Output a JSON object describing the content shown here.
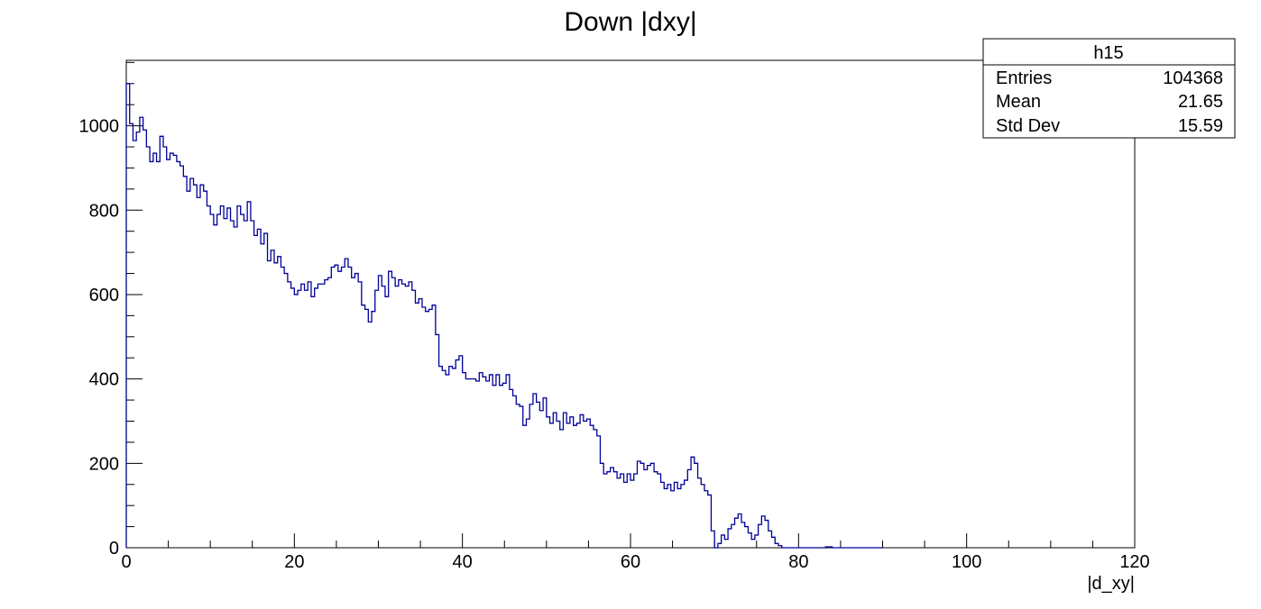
{
  "chart_data": {
    "type": "histogram",
    "title": "Down |dxy|",
    "xlabel": "|d_xy|",
    "ylabel": "",
    "xlim": [
      0,
      120
    ],
    "ylim": [
      0,
      1155
    ],
    "line_color": "#000099",
    "x_ticks": [
      "0",
      "20",
      "40",
      "60",
      "80",
      "100",
      "120"
    ],
    "y_ticks": [
      "0",
      "200",
      "400",
      "600",
      "800",
      "1000"
    ],
    "bins": {
      "bin_width": 0.4,
      "x_start": 0,
      "values": [
        1100,
        1005,
        965,
        985,
        1020,
        990,
        950,
        915,
        935,
        915,
        975,
        950,
        920,
        935,
        930,
        915,
        905,
        880,
        845,
        875,
        860,
        830,
        860,
        845,
        810,
        790,
        765,
        790,
        810,
        780,
        805,
        775,
        760,
        810,
        790,
        775,
        820,
        775,
        740,
        755,
        720,
        745,
        680,
        705,
        675,
        690,
        665,
        650,
        630,
        615,
        600,
        610,
        625,
        610,
        630,
        595,
        615,
        625,
        625,
        635,
        640,
        665,
        670,
        655,
        665,
        685,
        665,
        640,
        650,
        630,
        575,
        565,
        535,
        560,
        610,
        645,
        620,
        595,
        655,
        640,
        620,
        635,
        625,
        620,
        630,
        610,
        580,
        590,
        570,
        560,
        565,
        575,
        505,
        430,
        420,
        410,
        430,
        425,
        445,
        455,
        415,
        400,
        400,
        400,
        395,
        415,
        405,
        395,
        410,
        385,
        410,
        385,
        390,
        410,
        375,
        360,
        340,
        335,
        290,
        305,
        340,
        365,
        345,
        325,
        355,
        310,
        295,
        320,
        300,
        280,
        320,
        295,
        310,
        290,
        295,
        315,
        300,
        305,
        290,
        280,
        265,
        200,
        175,
        180,
        190,
        180,
        165,
        175,
        155,
        175,
        160,
        175,
        205,
        200,
        185,
        195,
        200,
        180,
        175,
        155,
        140,
        150,
        135,
        155,
        140,
        150,
        160,
        185,
        215,
        200,
        165,
        150,
        135,
        125,
        40,
        0,
        10,
        30,
        20,
        45,
        55,
        70,
        80,
        60,
        50,
        35,
        20,
        30,
        55,
        75,
        65,
        40,
        25,
        10,
        5,
        0,
        0,
        0,
        0,
        0,
        0,
        0,
        0,
        0,
        0,
        0,
        0,
        0,
        2,
        2,
        0,
        0,
        0,
        0,
        0,
        0,
        0,
        0,
        0,
        0,
        0,
        0,
        0,
        0,
        0
      ]
    }
  },
  "stats_box": {
    "name": "h15",
    "rows": [
      {
        "label": "Entries",
        "value": "104368"
      },
      {
        "label": "Mean",
        "value": "21.65"
      },
      {
        "label": "Std Dev",
        "value": "15.59"
      }
    ]
  }
}
